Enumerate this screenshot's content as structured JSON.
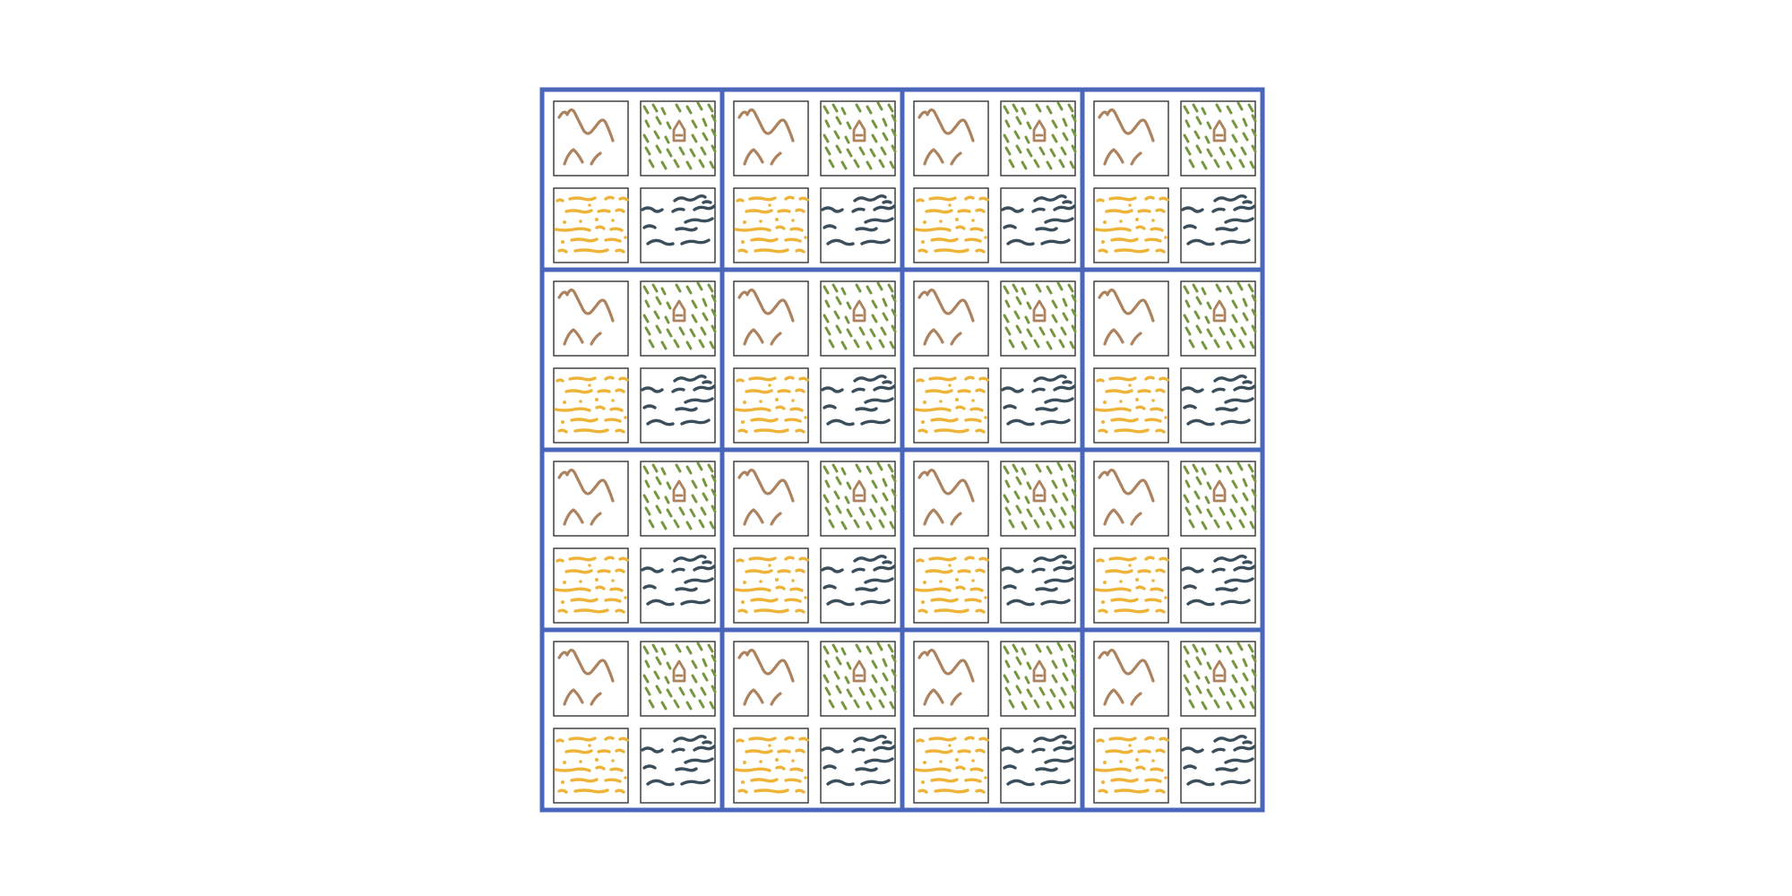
{
  "grid": {
    "rows": 4,
    "cols": 4,
    "cell_tiles": [
      {
        "icon": "mountains-icon",
        "color": "#AD825E"
      },
      {
        "icon": "forest-hut-icon",
        "color": "#76963F"
      },
      {
        "icon": "sand-dunes-icon",
        "color": "#EEB43A"
      },
      {
        "icon": "water-waves-icon",
        "color": "#3B4E5C"
      }
    ]
  },
  "colors": {
    "grid_border": "#4A66BB",
    "tile_border": "#333333",
    "background": "#FFFFFF",
    "hut": "#AD825E"
  }
}
